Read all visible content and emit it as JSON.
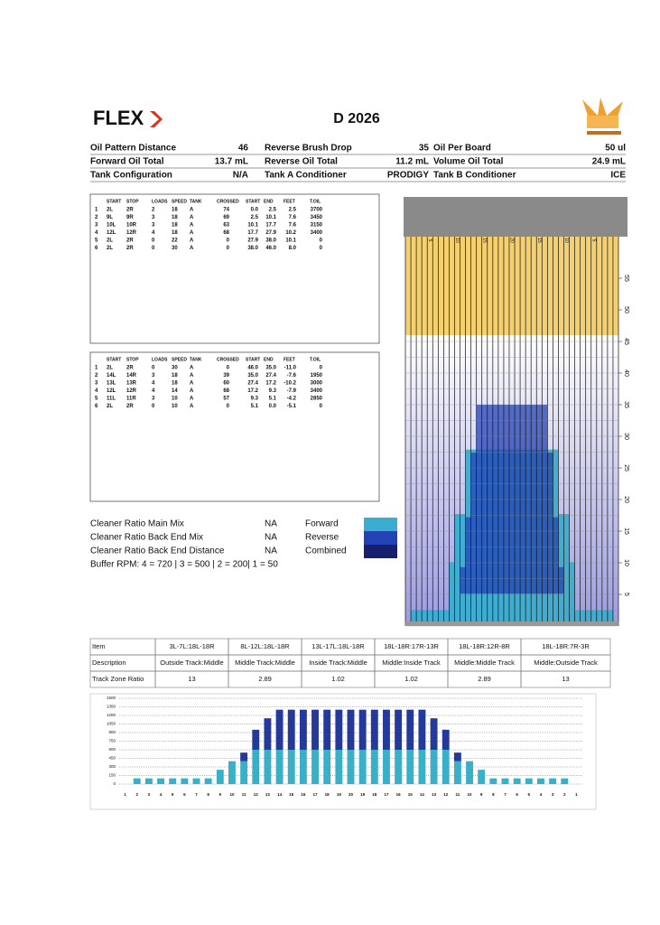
{
  "header": {
    "logo": "FLEX",
    "title": "D 2026"
  },
  "specs": [
    [
      {
        "label": "Oil Pattern Distance",
        "value": 46
      },
      {
        "label": "Reverse Brush Drop",
        "value": 35
      },
      {
        "label": "Oil Per Board",
        "value": "50 ul"
      }
    ],
    [
      {
        "label": "Forward Oil Total",
        "value": "13.7 mL"
      },
      {
        "label": "Reverse Oil Total",
        "value": "11.2 mL"
      },
      {
        "label": "Volume Oil Total",
        "value": "24.9 mL"
      }
    ],
    [
      {
        "label": "Tank Configuration",
        "value": "N/A"
      },
      {
        "label": "Tank A Conditioner",
        "value": "PRODIGY"
      },
      {
        "label": "Tank B Conditioner",
        "value": "ICE"
      }
    ]
  ],
  "forward_table": {
    "columns": [
      "START",
      "STOP",
      "LOADS",
      "SPEED",
      "TANK",
      "CROSSED",
      "START",
      "END",
      "FEET",
      "T.OIL"
    ],
    "rows": [
      [
        "1",
        "2L",
        "2R",
        "2",
        "18",
        "A",
        "74",
        "0.0",
        "2.5",
        "2.5",
        "3700"
      ],
      [
        "2",
        "9L",
        "9R",
        "3",
        "18",
        "A",
        "69",
        "2.5",
        "10.1",
        "7.6",
        "3450"
      ],
      [
        "3",
        "10L",
        "10R",
        "3",
        "18",
        "A",
        "63",
        "10.1",
        "17.7",
        "7.6",
        "3150"
      ],
      [
        "4",
        "12L",
        "12R",
        "4",
        "18",
        "A",
        "68",
        "17.7",
        "27.9",
        "10.2",
        "3400"
      ],
      [
        "5",
        "2L",
        "2R",
        "0",
        "22",
        "A",
        "0",
        "27.9",
        "38.0",
        "10.1",
        "0"
      ],
      [
        "6",
        "2L",
        "2R",
        "0",
        "30",
        "A",
        "0",
        "38.0",
        "46.0",
        "8.0",
        "0"
      ]
    ]
  },
  "reverse_table": {
    "columns": [
      "START",
      "STOP",
      "LOADS",
      "SPEED",
      "TANK",
      "CROSSED",
      "START",
      "END",
      "FEET",
      "T.OIL"
    ],
    "rows": [
      [
        "1",
        "2L",
        "2R",
        "0",
        "30",
        "A",
        "0",
        "46.0",
        "35.0",
        "-11.0",
        "0"
      ],
      [
        "2",
        "14L",
        "14R",
        "3",
        "18",
        "A",
        "39",
        "35.0",
        "27.4",
        "-7.6",
        "1950"
      ],
      [
        "3",
        "13L",
        "13R",
        "4",
        "18",
        "A",
        "60",
        "27.4",
        "17.2",
        "-10.2",
        "3000"
      ],
      [
        "4",
        "12L",
        "12R",
        "4",
        "14",
        "A",
        "68",
        "17.2",
        "9.3",
        "-7.9",
        "3400"
      ],
      [
        "5",
        "11L",
        "11R",
        "3",
        "10",
        "A",
        "57",
        "9.3",
        "5.1",
        "-4.2",
        "2850"
      ],
      [
        "6",
        "2L",
        "2R",
        "0",
        "10",
        "A",
        "0",
        "5.1",
        "0.0",
        "-5.1",
        "0"
      ]
    ]
  },
  "cleaner": [
    {
      "label": "Cleaner Ratio Main Mix",
      "value": "NA"
    },
    {
      "label": "Cleaner Ratio Back End Mix",
      "value": "NA"
    },
    {
      "label": "Cleaner Ratio Back End Distance",
      "value": "NA"
    }
  ],
  "buffer": "Buffer RPM: 4 = 720 | 3 = 500 | 2 = 200| 1 = 50",
  "legend": [
    {
      "label": "Forward",
      "color": "#3aaed0"
    },
    {
      "label": "Reverse",
      "color": "#2342b4"
    },
    {
      "label": "Combined",
      "color": "#16206e"
    }
  ],
  "lane": {
    "arrow_labels": [
      5,
      10,
      15,
      20,
      15,
      10,
      5
    ],
    "distance_ticks": [
      55,
      50,
      45,
      40,
      35,
      30,
      25,
      20,
      15,
      10,
      5
    ]
  },
  "zone_table": {
    "header": [
      "Item",
      "3L-7L:18L-18R",
      "8L-12L:18L-18R",
      "13L-17L:18L-18R",
      "18L-18R:17R-13R",
      "18L-18R:12R-8R",
      "18L-18R:7R-3R"
    ],
    "rows": [
      [
        "Description",
        "Outside Track:Middle",
        "Middle Track:Middle",
        "Inside Track:Middle",
        "Middle:Inside Track",
        "Middle:Middle Track",
        "Middle:Outside Track"
      ],
      [
        "Track Zone Ratio",
        "13",
        "2.89",
        "1.02",
        "1.02",
        "2.89",
        "13"
      ]
    ]
  },
  "chart_data": {
    "type": "stacked_bar",
    "categories": [
      1,
      2,
      3,
      4,
      5,
      6,
      7,
      8,
      9,
      10,
      11,
      12,
      13,
      14,
      15,
      16,
      17,
      18,
      19,
      20,
      19,
      18,
      17,
      16,
      15,
      14,
      13,
      12,
      11,
      10,
      9,
      8,
      7,
      6,
      5,
      4,
      3,
      2,
      1
    ],
    "series": [
      {
        "color": "#3ab0c8",
        "values": [
          0,
          100,
          100,
          100,
          100,
          100,
          100,
          100,
          250,
          400,
          400,
          600,
          600,
          600,
          600,
          600,
          600,
          600,
          600,
          600,
          600,
          600,
          600,
          600,
          600,
          600,
          600,
          600,
          400,
          400,
          250,
          100,
          100,
          100,
          100,
          100,
          100,
          100,
          0
        ]
      },
      {
        "color": "#25399a",
        "values": [
          0,
          0,
          0,
          0,
          0,
          0,
          0,
          0,
          0,
          0,
          150,
          350,
          550,
          700,
          700,
          700,
          700,
          700,
          700,
          700,
          700,
          700,
          700,
          700,
          700,
          700,
          550,
          350,
          150,
          0,
          0,
          0,
          0,
          0,
          0,
          0,
          0,
          0,
          0
        ]
      }
    ],
    "ylim": [
      0,
      1500
    ],
    "yticks": [
      0,
      150,
      300,
      450,
      600,
      750,
      900,
      1050,
      1200,
      1350,
      1500
    ],
    "grid": true
  }
}
